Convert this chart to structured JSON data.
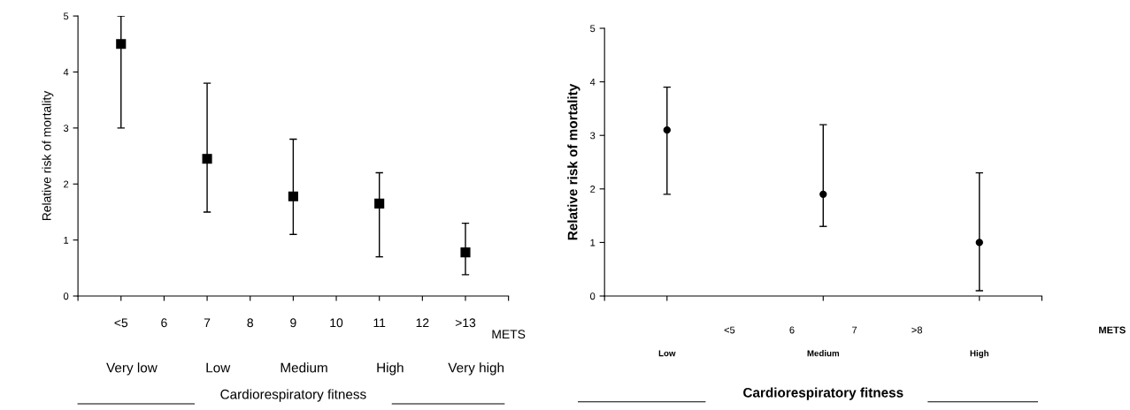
{
  "chart_data": [
    {
      "type": "scatter",
      "ylabel": "Relative risk of mortality",
      "xlabel": "Cardiorespiratory fitness",
      "categories": [
        "<5",
        "6",
        "7",
        "8",
        "9",
        "10",
        "11",
        "12",
        ">13"
      ],
      "ylim": [
        0,
        5
      ],
      "yticks": [
        0,
        1,
        2,
        3,
        4,
        5
      ],
      "marker": "square",
      "grid": false,
      "legend": false,
      "series": [
        {
          "color": "#000000",
          "values": [
            4.5,
            null,
            2.45,
            null,
            1.78,
            null,
            1.65,
            null,
            0.78
          ],
          "errors": [
            [
              3.0,
              5.0
            ],
            null,
            [
              1.5,
              3.8
            ],
            null,
            [
              1.1,
              2.8
            ],
            null,
            [
              0.7,
              2.2
            ],
            null,
            [
              0.38,
              1.3
            ]
          ]
        }
      ],
      "annotations": [
        "Very low",
        "Low",
        "Medium",
        "High",
        "Very high",
        "METS"
      ]
    },
    {
      "type": "scatter",
      "ylabel": "Relative risk of mortality",
      "xlabel": "Cardiorespiratory fitness",
      "categories": [
        "Low",
        "Medium",
        "High"
      ],
      "ylim": [
        0,
        5
      ],
      "yticks": [
        0,
        1,
        2,
        3,
        4,
        5
      ],
      "marker": "circle",
      "grid": false,
      "legend": false,
      "series": [
        {
          "color": "#000000",
          "values": [
            3.1,
            1.9,
            1.0
          ],
          "errors": [
            [
              1.9,
              3.9
            ],
            [
              1.3,
              3.2
            ],
            [
              0.1,
              2.3
            ]
          ]
        }
      ],
      "annotations": [
        "<5",
        "6",
        "7",
        ">8",
        "METS"
      ]
    }
  ]
}
